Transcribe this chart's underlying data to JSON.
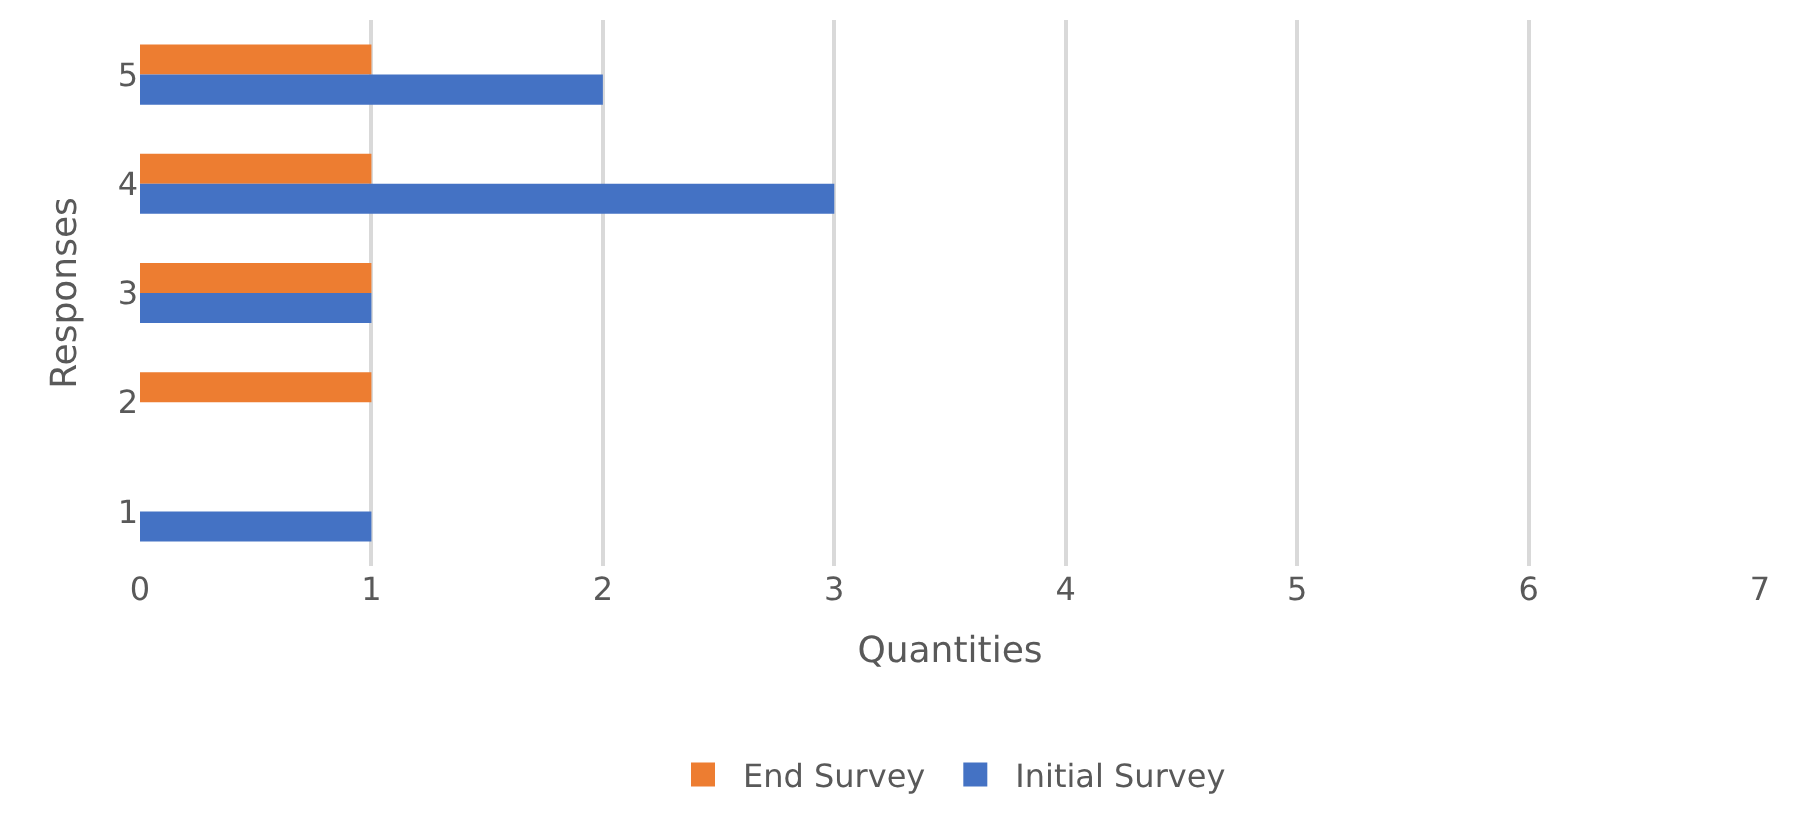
{
  "chart_data": {
    "type": "bar",
    "orientation": "horizontal",
    "xlabel": "Quantities",
    "ylabel": "Responses",
    "categories": [
      "5",
      "4",
      "3",
      "2",
      "1"
    ],
    "series": [
      {
        "name": "End Survey",
        "color": "#ed7d31",
        "values": [
          1,
          1,
          1,
          1,
          0
        ]
      },
      {
        "name": "Initial Survey",
        "color": "#4472c4",
        "values": [
          2,
          3,
          1,
          0,
          1
        ]
      }
    ],
    "xlim": [
      0,
      7
    ],
    "xticks": [
      0,
      1,
      2,
      3,
      4,
      5,
      6,
      7
    ],
    "grid": "x",
    "legend": "bottom"
  }
}
